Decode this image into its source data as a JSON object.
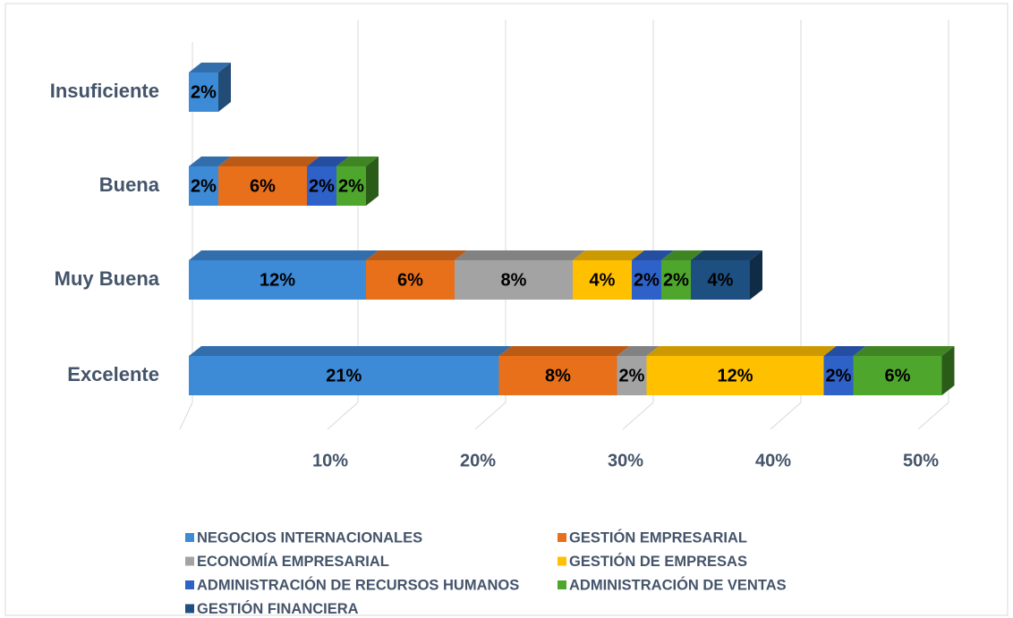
{
  "chart_data": {
    "type": "bar3d_stacked_horizontal",
    "categories": [
      "Insuficiente",
      "Buena",
      "Muy Buena",
      "Excelente"
    ],
    "series": [
      {
        "name": "NEGOCIOS INTERNACIONALES",
        "color": "#3d8ad6",
        "values": [
          2,
          2,
          12,
          21
        ],
        "value_labels": [
          "2%",
          "2%",
          "12%",
          "21%"
        ]
      },
      {
        "name": "GESTIÓN EMPRESARIAL",
        "color": "#e8701a",
        "values": [
          null,
          6,
          6,
          8
        ],
        "value_labels": [
          null,
          "6%",
          "6%",
          "8%"
        ]
      },
      {
        "name": "ECONOMÍA EMPRESARIAL",
        "color": "#a3a3a3",
        "values": [
          null,
          null,
          8,
          2
        ],
        "value_labels": [
          null,
          null,
          "8%",
          "2%"
        ]
      },
      {
        "name": "GESTIÓN DE EMPRESAS",
        "color": "#ffc000",
        "values": [
          null,
          null,
          4,
          12
        ],
        "value_labels": [
          null,
          null,
          "4%",
          "12%"
        ]
      },
      {
        "name": "ADMINISTRACIÓN DE RECURSOS HUMANOS",
        "color": "#2e62c9",
        "values": [
          null,
          2,
          2,
          2
        ],
        "value_labels": [
          null,
          "2%",
          "2%",
          "2%"
        ]
      },
      {
        "name": "ADMINISTRACIÓN DE VENTAS",
        "color": "#4fa62d",
        "values": [
          null,
          2,
          2,
          6
        ],
        "value_labels": [
          null,
          "2%",
          "2%",
          "6%"
        ]
      },
      {
        "name": "GESTIÓN FINANCIERA",
        "color": "#1d4f80",
        "values": [
          null,
          null,
          4,
          null
        ],
        "value_labels": [
          null,
          null,
          "4%",
          null
        ]
      }
    ],
    "xlim": [
      0,
      50
    ],
    "xticks": [
      {
        "value": 10,
        "label": "10%"
      },
      {
        "value": 20,
        "label": "20%"
      },
      {
        "value": 30,
        "label": "30%"
      },
      {
        "value": 40,
        "label": "40%"
      },
      {
        "value": 50,
        "label": "50%"
      }
    ],
    "grid": true,
    "legend": "bottom"
  }
}
